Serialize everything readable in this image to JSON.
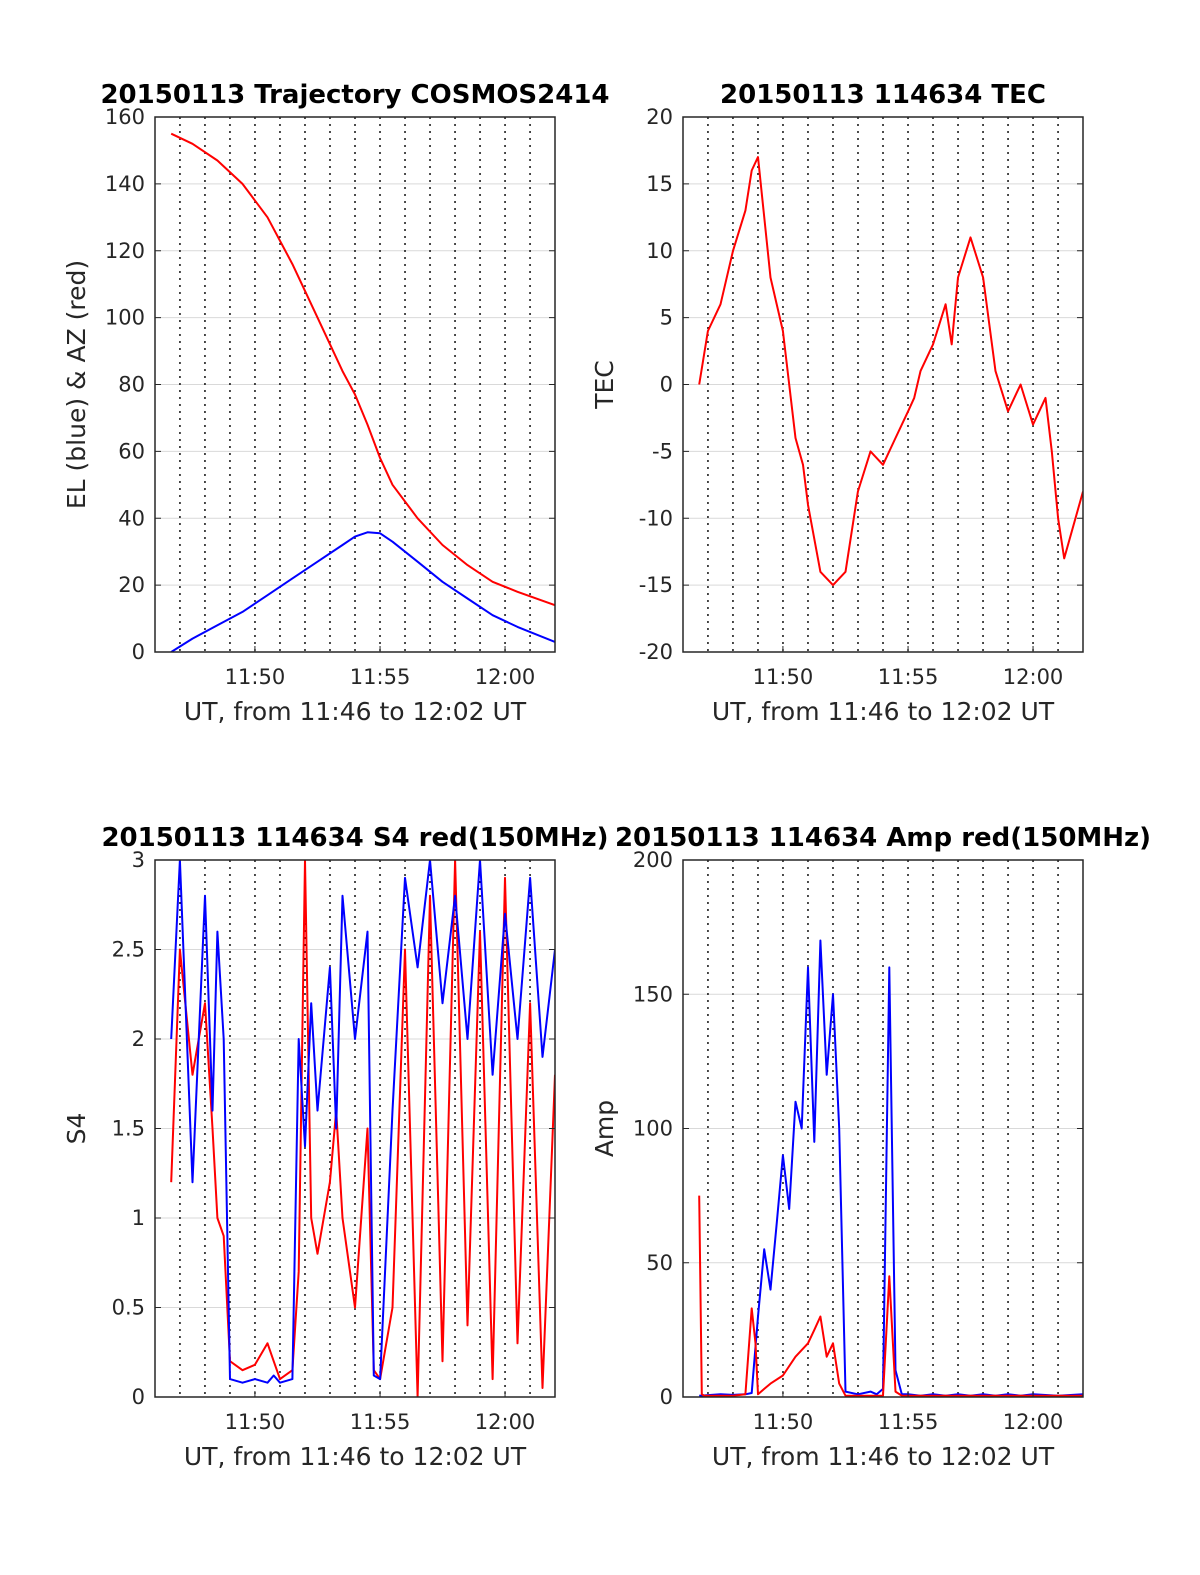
{
  "colors": {
    "red": "#ff0000",
    "blue": "#0000ff",
    "grid_solid": "#d9d9d9",
    "grid_dotted": "#000000",
    "axes": "#262626"
  },
  "chart_data": [
    {
      "id": "trajectory",
      "type": "line",
      "title": "20150113 Trajectory COSMOS2414",
      "xlabel": "UT, from 11:46 to 12:02 UT",
      "ylabel": "EL (blue) & AZ (red)",
      "xlim": [
        11.7667,
        12.0333
      ],
      "ylim": [
        0,
        160
      ],
      "xticks": [
        {
          "v": 11.8333,
          "label": "11:50"
        },
        {
          "v": 11.9167,
          "label": "11:55"
        },
        {
          "v": 12.0,
          "label": "12:00"
        }
      ],
      "yticks": [
        {
          "v": 0,
          "label": "0"
        },
        {
          "v": 20,
          "label": "20"
        },
        {
          "v": 40,
          "label": "40"
        },
        {
          "v": 60,
          "label": "60"
        },
        {
          "v": 80,
          "label": "80"
        },
        {
          "v": 100,
          "label": "100"
        },
        {
          "v": 120,
          "label": "120"
        },
        {
          "v": 140,
          "label": "140"
        },
        {
          "v": 160,
          "label": "160"
        }
      ],
      "grid": "solid-y, dotted-x-every-minute",
      "series": [
        {
          "name": "AZ",
          "color": "#ff0000",
          "x": [
            11.7775,
            11.7917,
            11.8083,
            11.825,
            11.8417,
            11.8583,
            11.875,
            11.8917,
            11.9,
            11.9083,
            11.9167,
            11.925,
            11.9417,
            11.9583,
            11.975,
            11.9917,
            12.0083,
            12.0333
          ],
          "y": [
            155,
            152,
            147,
            140,
            130,
            116,
            100,
            84,
            77,
            68,
            58,
            50,
            40,
            32,
            26,
            21,
            18,
            14
          ]
        },
        {
          "name": "EL",
          "color": "#0000ff",
          "x": [
            11.7775,
            11.7917,
            11.8083,
            11.825,
            11.8417,
            11.8583,
            11.875,
            11.8917,
            11.9,
            11.9083,
            11.9167,
            11.925,
            11.9417,
            11.9583,
            11.975,
            11.9917,
            12.0083,
            12.0333
          ],
          "y": [
            0,
            4,
            8,
            12,
            17,
            22,
            27,
            32,
            34.5,
            35.8,
            35.5,
            33,
            27,
            21,
            16,
            11,
            7.5,
            3
          ]
        }
      ]
    },
    {
      "id": "tec",
      "type": "line",
      "title": "20150113 114634 TEC",
      "xlabel": "UT, from 11:46 to 12:02 UT",
      "ylabel": "TEC",
      "xlim": [
        11.7667,
        12.0333
      ],
      "ylim": [
        -20,
        20
      ],
      "xticks": [
        {
          "v": 11.8333,
          "label": "11:50"
        },
        {
          "v": 11.9167,
          "label": "11:55"
        },
        {
          "v": 12.0,
          "label": "12:00"
        }
      ],
      "yticks": [
        {
          "v": -20,
          "label": "-20"
        },
        {
          "v": -15,
          "label": "-15"
        },
        {
          "v": -10,
          "label": "-10"
        },
        {
          "v": -5,
          "label": "-5"
        },
        {
          "v": 0,
          "label": "0"
        },
        {
          "v": 5,
          "label": "5"
        },
        {
          "v": 10,
          "label": "10"
        },
        {
          "v": 15,
          "label": "15"
        },
        {
          "v": 20,
          "label": "20"
        }
      ],
      "grid": "solid-y, dotted-x-every-minute",
      "series": [
        {
          "name": "TEC",
          "color": "#ff0000",
          "x": [
            11.7775,
            11.7833,
            11.7917,
            11.8,
            11.8083,
            11.8125,
            11.8167,
            11.825,
            11.8333,
            11.8417,
            11.8467,
            11.85,
            11.8583,
            11.8667,
            11.875,
            11.8833,
            11.8917,
            11.9,
            11.9083,
            11.9167,
            11.9208,
            11.925,
            11.9333,
            11.9417,
            11.9458,
            11.95,
            11.9583,
            11.9667,
            11.975,
            11.9833,
            11.9917,
            12.0,
            12.0083,
            12.0125,
            12.0167,
            12.0208,
            12.0333
          ],
          "y": [
            0,
            4,
            6,
            10,
            13,
            16,
            17,
            8,
            4,
            -4,
            -6,
            -9,
            -14,
            -15,
            -14,
            -8,
            -5,
            -6,
            -4,
            -2,
            -1,
            1,
            3,
            6,
            3,
            8,
            11,
            8,
            1,
            -2,
            0,
            -3,
            -1,
            -5,
            -10,
            -13,
            -8
          ]
        }
      ]
    },
    {
      "id": "s4",
      "type": "line",
      "title": "20150113 114634 S4 red(150MHz)",
      "xlabel": "UT, from 11:46 to 12:02 UT",
      "ylabel": "S4",
      "xlim": [
        11.7667,
        12.0333
      ],
      "ylim": [
        0,
        3
      ],
      "xticks": [
        {
          "v": 11.8333,
          "label": "11:50"
        },
        {
          "v": 11.9167,
          "label": "11:55"
        },
        {
          "v": 12.0,
          "label": "12:00"
        }
      ],
      "yticks": [
        {
          "v": 0,
          "label": "0"
        },
        {
          "v": 0.5,
          "label": "0.5"
        },
        {
          "v": 1,
          "label": "1"
        },
        {
          "v": 1.5,
          "label": "1.5"
        },
        {
          "v": 2,
          "label": "2"
        },
        {
          "v": 2.5,
          "label": "2.5"
        },
        {
          "v": 3,
          "label": "3"
        }
      ],
      "grid": "solid-y, dotted-x-every-minute",
      "series": [
        {
          "name": "red",
          "color": "#ff0000",
          "x": [
            11.7775,
            11.7833,
            11.7917,
            11.8,
            11.805,
            11.8083,
            11.8125,
            11.8167,
            11.825,
            11.8333,
            11.8417,
            11.8458,
            11.85,
            11.8583,
            11.8625,
            11.8667,
            11.8708,
            11.875,
            11.8833,
            11.8875,
            11.8917,
            11.9,
            11.9083,
            11.9125,
            11.9167,
            11.925,
            11.9333,
            11.9417,
            11.95,
            11.9583,
            11.9667,
            11.975,
            11.9833,
            11.9917,
            12.0,
            12.0083,
            12.0167,
            12.025,
            12.0333
          ],
          "y": [
            1.2,
            2.5,
            1.8,
            2.2,
            1.5,
            1.0,
            0.9,
            0.2,
            0.15,
            0.18,
            0.3,
            0.2,
            0.1,
            0.15,
            0.7,
            3.0,
            1.0,
            0.8,
            1.2,
            1.6,
            1.0,
            0.5,
            1.5,
            0.15,
            0.1,
            0.5,
            2.5,
            0,
            2.8,
            0.2,
            3.0,
            0.4,
            2.6,
            0.1,
            2.9,
            0.3,
            2.2,
            0.05,
            1.8
          ]
        },
        {
          "name": "blue",
          "color": "#0000ff",
          "x": [
            11.7775,
            11.7833,
            11.7917,
            11.8,
            11.805,
            11.8083,
            11.8125,
            11.8167,
            11.825,
            11.8333,
            11.8417,
            11.8458,
            11.85,
            11.8583,
            11.8625,
            11.8667,
            11.8708,
            11.875,
            11.8833,
            11.8875,
            11.8917,
            11.9,
            11.9083,
            11.9125,
            11.9167,
            11.925,
            11.9333,
            11.9417,
            11.95,
            11.9583,
            11.9667,
            11.975,
            11.9833,
            11.9917,
            12.0,
            12.0083,
            12.0167,
            12.025,
            12.0333
          ],
          "y": [
            2.0,
            3.0,
            1.2,
            2.8,
            1.6,
            2.6,
            2.0,
            0.1,
            0.08,
            0.1,
            0.08,
            0.12,
            0.08,
            0.1,
            2.0,
            1.4,
            2.2,
            1.6,
            2.4,
            1.5,
            2.8,
            2.0,
            2.6,
            0.12,
            0.1,
            1.6,
            2.9,
            2.4,
            3.0,
            2.2,
            2.8,
            2.0,
            3.0,
            1.8,
            2.7,
            2.0,
            2.9,
            1.9,
            2.5
          ]
        }
      ]
    },
    {
      "id": "amp",
      "type": "line",
      "title": "20150113 114634 Amp red(150MHz)",
      "xlabel": "UT, from 11:46 to 12:02 UT",
      "ylabel": "Amp",
      "xlim": [
        11.7667,
        12.0333
      ],
      "ylim": [
        0,
        200
      ],
      "xticks": [
        {
          "v": 11.8333,
          "label": "11:50"
        },
        {
          "v": 11.9167,
          "label": "11:55"
        },
        {
          "v": 12.0,
          "label": "12:00"
        }
      ],
      "yticks": [
        {
          "v": 0,
          "label": "0"
        },
        {
          "v": 50,
          "label": "50"
        },
        {
          "v": 100,
          "label": "100"
        },
        {
          "v": 150,
          "label": "150"
        },
        {
          "v": 200,
          "label": "200"
        }
      ],
      "grid": "solid-y, dotted-x-every-minute",
      "series": [
        {
          "name": "blue",
          "color": "#0000ff",
          "x": [
            11.7775,
            11.7917,
            11.8,
            11.8083,
            11.8125,
            11.8167,
            11.8208,
            11.825,
            11.8292,
            11.8333,
            11.8375,
            11.8417,
            11.8458,
            11.85,
            11.8542,
            11.8583,
            11.8625,
            11.8667,
            11.8708,
            11.875,
            11.8833,
            11.8917,
            11.8958,
            11.9,
            11.9042,
            11.9083,
            11.9125,
            11.9167,
            11.925,
            11.9333,
            11.9417,
            11.95,
            11.9583,
            11.9667,
            11.975,
            11.9833,
            11.9917,
            12.0,
            12.0167,
            12.0333
          ],
          "y": [
            0.5,
            1,
            0.8,
            1,
            1.5,
            30,
            55,
            40,
            65,
            90,
            70,
            110,
            100,
            160,
            95,
            170,
            120,
            150,
            100,
            2,
            1,
            2,
            1,
            3,
            160,
            10,
            1,
            1,
            0.5,
            1,
            0.5,
            1,
            0.5,
            1,
            0.5,
            1,
            0.5,
            1,
            0.5,
            1
          ]
        },
        {
          "name": "red",
          "color": "#ff0000",
          "x": [
            11.7775,
            11.7792,
            11.7808,
            11.7917,
            11.8,
            11.8083,
            11.8125,
            11.815,
            11.8167,
            11.8208,
            11.825,
            11.8333,
            11.8417,
            11.85,
            11.8542,
            11.8583,
            11.8625,
            11.8667,
            11.8708,
            11.875,
            11.8833,
            11.9,
            11.9042,
            11.9083,
            11.9125,
            11.9167,
            11.9333,
            11.95,
            11.9667,
            11.9833,
            12.0,
            12.0167,
            12.0333
          ],
          "y": [
            75,
            1,
            0.5,
            0.5,
            0.5,
            1,
            33,
            20,
            1,
            3,
            5,
            8,
            15,
            20,
            25,
            30,
            15,
            20,
            5,
            0.5,
            0.5,
            0.5,
            45,
            2,
            0.5,
            0.5,
            0.5,
            0.5,
            0.5,
            0.5,
            0.5,
            0.5,
            0.5
          ]
        }
      ]
    }
  ]
}
